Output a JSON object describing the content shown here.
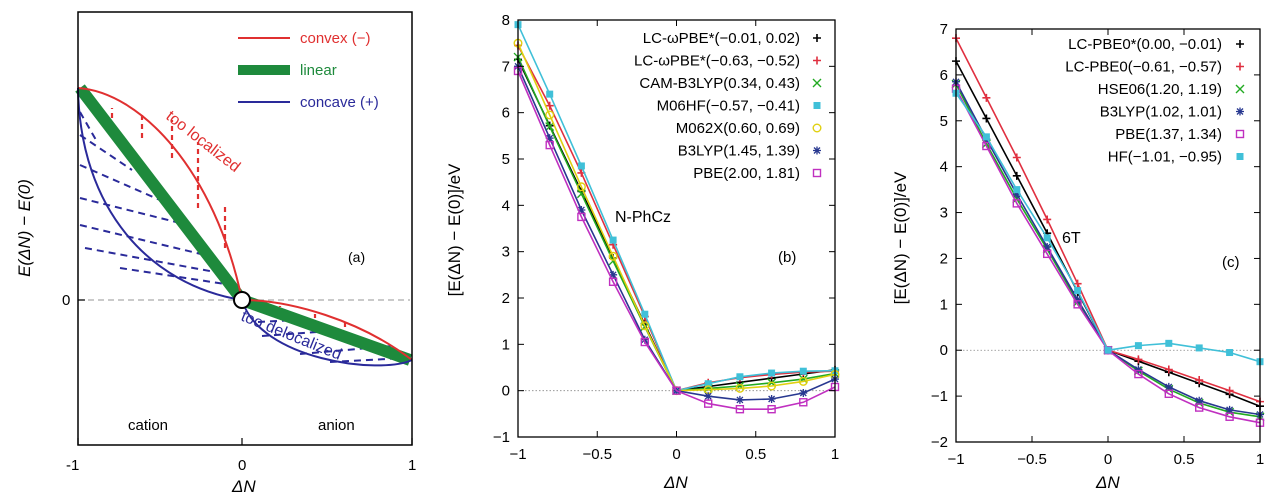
{
  "chart_data": [
    {
      "id": "a",
      "type": "line",
      "panel_label": "(a)",
      "xlabel": "ΔN",
      "ylabel": "E(ΔN) − E(0)",
      "xlim": [
        -1,
        1
      ],
      "ylim": [
        -0.5,
        1.0
      ],
      "xticks": [
        "-1",
        "0",
        "1"
      ],
      "yticks": [
        "0"
      ],
      "grid": false,
      "legend_position": "top-right",
      "legend": [
        {
          "label": "convex (−)",
          "color": "#e03030"
        },
        {
          "label": "linear",
          "color": "#1e8a3c"
        },
        {
          "label": "concave (+)",
          "color": "#2a2a9a"
        }
      ],
      "annotations": [
        {
          "text": "too localized",
          "color": "#e03030"
        },
        {
          "text": "too delocalized",
          "color": "#2a2a9a"
        },
        {
          "text": "cation",
          "color": "#000000"
        },
        {
          "text": "anion",
          "color": "#000000"
        }
      ],
      "series": [
        {
          "name": "convex (−)",
          "x": [
            -0.95,
            -0.7,
            -0.4,
            0,
            0.4,
            0.7,
            1.0
          ],
          "y": [
            1.0,
            0.87,
            0.6,
            0,
            -0.05,
            -0.12,
            -0.25
          ]
        },
        {
          "name": "linear",
          "x": [
            -0.95,
            0,
            1.0
          ],
          "y": [
            1.0,
            0,
            -0.25
          ]
        },
        {
          "name": "concave (+)",
          "x": [
            -0.95,
            -0.7,
            -0.4,
            0,
            0.4,
            0.7,
            1.0
          ],
          "y": [
            1.0,
            0.4,
            0.1,
            0,
            -0.17,
            -0.25,
            -0.25
          ]
        }
      ]
    },
    {
      "id": "b",
      "type": "line",
      "panel_label": "(b)",
      "annotation": "N-PhCz",
      "xlabel": "ΔN",
      "ylabel": "[E(ΔN) − E(0)]/eV",
      "xlim": [
        -1,
        1
      ],
      "ylim": [
        -1,
        8
      ],
      "xticks": [
        "−1",
        "−0.5",
        "0",
        "0.5",
        "1"
      ],
      "yticks": [
        "−1",
        "0",
        "1",
        "2",
        "3",
        "4",
        "5",
        "6",
        "7",
        "8"
      ],
      "legend_position": "top-right",
      "x": [
        -1,
        -0.8,
        -0.6,
        -0.4,
        -0.2,
        0,
        0.2,
        0.4,
        0.6,
        0.8,
        1
      ],
      "series": [
        {
          "name": "LC-ωPBE*(−0.01, 0.02)",
          "color": "#000000",
          "marker": "plus",
          "y": [
            7.15,
            5.72,
            4.3,
            2.86,
            1.43,
            0,
            0.09,
            0.18,
            0.27,
            0.36,
            0.45
          ]
        },
        {
          "name": "LC-ωPBE*(−0.63, −0.52)",
          "color": "#e03040",
          "marker": "plus",
          "y": [
            7.45,
            6.15,
            4.7,
            3.15,
            1.6,
            0,
            0.17,
            0.28,
            0.35,
            0.4,
            0.42
          ]
        },
        {
          "name": "CAM-B3LYP(0.34, 0.43)",
          "color": "#22aa22",
          "marker": "cross",
          "y": [
            7.2,
            5.7,
            4.25,
            2.8,
            1.38,
            0,
            0.05,
            0.1,
            0.17,
            0.25,
            0.37
          ]
        },
        {
          "name": "M06HF(−0.57, −0.41)",
          "color": "#40c0d8",
          "marker": "square",
          "y": [
            7.9,
            6.4,
            4.85,
            3.25,
            1.65,
            0,
            0.15,
            0.3,
            0.38,
            0.42,
            0.43
          ]
        },
        {
          "name": "M062X(0.60, 0.69)",
          "color": "#e0d010",
          "marker": "circle",
          "y": [
            7.5,
            5.95,
            4.4,
            2.9,
            1.4,
            0,
            0.02,
            0.05,
            0.1,
            0.2,
            0.35
          ]
        },
        {
          "name": "B3LYP(1.45, 1.39)",
          "color": "#283890",
          "marker": "star",
          "y": [
            7.0,
            5.45,
            3.9,
            2.5,
            1.1,
            0,
            -0.12,
            -0.2,
            -0.18,
            -0.05,
            0.25
          ]
        },
        {
          "name": "PBE(2.00, 1.81)",
          "color": "#c030c0",
          "marker": "square-open",
          "y": [
            6.9,
            5.3,
            3.75,
            2.35,
            1.05,
            0,
            -0.28,
            -0.4,
            -0.4,
            -0.25,
            0.08
          ]
        }
      ]
    },
    {
      "id": "c",
      "type": "line",
      "panel_label": "(c)",
      "annotation": "6T",
      "xlabel": "ΔN",
      "ylabel": "[E(ΔN) − E(0)]/eV",
      "xlim": [
        -1,
        1
      ],
      "ylim": [
        -2,
        7
      ],
      "xticks": [
        "−1",
        "−0.5",
        "0",
        "0.5",
        "1"
      ],
      "yticks": [
        "−2",
        "−1",
        "0",
        "1",
        "2",
        "3",
        "4",
        "5",
        "6",
        "7"
      ],
      "legend_position": "top-right",
      "x": [
        -1,
        -0.8,
        -0.6,
        -0.4,
        -0.2,
        0,
        0.2,
        0.4,
        0.6,
        0.8,
        1
      ],
      "series": [
        {
          "name": "LC-PBE0*(0.00, −0.01)",
          "color": "#000000",
          "marker": "plus",
          "y": [
            6.3,
            5.05,
            3.8,
            2.55,
            1.27,
            0,
            -0.24,
            -0.48,
            -0.72,
            -0.96,
            -1.22
          ]
        },
        {
          "name": "LC-PBE0(−0.61, −0.57)",
          "color": "#e03040",
          "marker": "plus",
          "y": [
            6.8,
            5.5,
            4.2,
            2.85,
            1.45,
            0,
            -0.2,
            -0.42,
            -0.65,
            -0.88,
            -1.12
          ]
        },
        {
          "name": "HSE06(1.20, 1.19)",
          "color": "#22aa22",
          "marker": "cross",
          "y": [
            5.8,
            4.5,
            3.3,
            2.2,
            1.05,
            0,
            -0.45,
            -0.85,
            -1.15,
            -1.35,
            -1.45
          ]
        },
        {
          "name": "B3LYP(1.02, 1.01)",
          "color": "#283890",
          "marker": "star",
          "y": [
            5.85,
            4.6,
            3.4,
            2.25,
            1.1,
            0,
            -0.42,
            -0.8,
            -1.1,
            -1.3,
            -1.4
          ]
        },
        {
          "name": "PBE(1.37, 1.34)",
          "color": "#c030c0",
          "marker": "square-open",
          "y": [
            5.7,
            4.45,
            3.2,
            2.1,
            1.0,
            0,
            -0.52,
            -0.95,
            -1.25,
            -1.45,
            -1.58
          ]
        },
        {
          "name": "HF(−1.01, −0.95)",
          "color": "#40c0d8",
          "marker": "square",
          "y": [
            5.6,
            4.65,
            3.5,
            2.45,
            1.3,
            0,
            0.1,
            0.15,
            0.05,
            -0.05,
            -0.25
          ]
        }
      ]
    }
  ]
}
